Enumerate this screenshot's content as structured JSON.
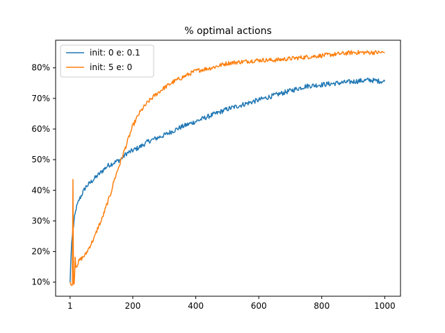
{
  "chart_data": {
    "type": "line",
    "title": "% optimal actions",
    "xlabel": "",
    "ylabel": "",
    "xlim": [
      -45,
      1050
    ],
    "ylim": [
      0.054,
      0.89
    ],
    "xticks": [
      1,
      200,
      400,
      600,
      800,
      1000
    ],
    "xtick_labels": [
      "1",
      "200",
      "400",
      "600",
      "800",
      "1000"
    ],
    "yticks": [
      0.1,
      0.2,
      0.3,
      0.4,
      0.5,
      0.6,
      0.7,
      0.8
    ],
    "ytick_labels": [
      "10%",
      "20%",
      "30%",
      "40%",
      "50%",
      "60%",
      "70%",
      "80%"
    ],
    "grid": false,
    "legend_position": "upper-left",
    "series": [
      {
        "name": "init: 0 e: 0.1",
        "color": "#1f77b4",
        "points": [
          [
            1,
            0.1
          ],
          [
            3,
            0.16
          ],
          [
            6,
            0.23
          ],
          [
            10,
            0.27
          ],
          [
            15,
            0.31
          ],
          [
            20,
            0.34
          ],
          [
            30,
            0.37
          ],
          [
            40,
            0.39
          ],
          [
            50,
            0.41
          ],
          [
            60,
            0.42
          ],
          [
            80,
            0.44
          ],
          [
            100,
            0.46
          ],
          [
            120,
            0.48
          ],
          [
            140,
            0.49
          ],
          [
            160,
            0.5
          ],
          [
            180,
            0.52
          ],
          [
            200,
            0.53
          ],
          [
            220,
            0.54
          ],
          [
            250,
            0.56
          ],
          [
            300,
            0.58
          ],
          [
            350,
            0.605
          ],
          [
            400,
            0.625
          ],
          [
            450,
            0.645
          ],
          [
            500,
            0.665
          ],
          [
            550,
            0.68
          ],
          [
            600,
            0.695
          ],
          [
            650,
            0.71
          ],
          [
            700,
            0.725
          ],
          [
            750,
            0.74
          ],
          [
            800,
            0.745
          ],
          [
            850,
            0.75
          ],
          [
            900,
            0.755
          ],
          [
            950,
            0.76
          ],
          [
            1000,
            0.755
          ]
        ]
      },
      {
        "name": "init: 5 e: 0",
        "color": "#ff7f0e",
        "points": [
          [
            1,
            0.1
          ],
          [
            4,
            0.09
          ],
          [
            8,
            0.09
          ],
          [
            10,
            0.435
          ],
          [
            12,
            0.1
          ],
          [
            14,
            0.09
          ],
          [
            17,
            0.18
          ],
          [
            20,
            0.15
          ],
          [
            25,
            0.16
          ],
          [
            30,
            0.17
          ],
          [
            40,
            0.18
          ],
          [
            50,
            0.19
          ],
          [
            60,
            0.21
          ],
          [
            70,
            0.23
          ],
          [
            80,
            0.25
          ],
          [
            90,
            0.28
          ],
          [
            100,
            0.3
          ],
          [
            110,
            0.33
          ],
          [
            120,
            0.36
          ],
          [
            130,
            0.39
          ],
          [
            140,
            0.43
          ],
          [
            150,
            0.46
          ],
          [
            160,
            0.49
          ],
          [
            170,
            0.52
          ],
          [
            180,
            0.55
          ],
          [
            190,
            0.58
          ],
          [
            200,
            0.61
          ],
          [
            210,
            0.63
          ],
          [
            220,
            0.65
          ],
          [
            230,
            0.665
          ],
          [
            250,
            0.69
          ],
          [
            270,
            0.71
          ],
          [
            300,
            0.735
          ],
          [
            330,
            0.755
          ],
          [
            360,
            0.77
          ],
          [
            400,
            0.79
          ],
          [
            450,
            0.8
          ],
          [
            500,
            0.815
          ],
          [
            550,
            0.82
          ],
          [
            600,
            0.825
          ],
          [
            650,
            0.825
          ],
          [
            700,
            0.83
          ],
          [
            750,
            0.835
          ],
          [
            800,
            0.84
          ],
          [
            850,
            0.845
          ],
          [
            900,
            0.85
          ],
          [
            950,
            0.85
          ],
          [
            1000,
            0.85
          ]
        ]
      }
    ]
  }
}
